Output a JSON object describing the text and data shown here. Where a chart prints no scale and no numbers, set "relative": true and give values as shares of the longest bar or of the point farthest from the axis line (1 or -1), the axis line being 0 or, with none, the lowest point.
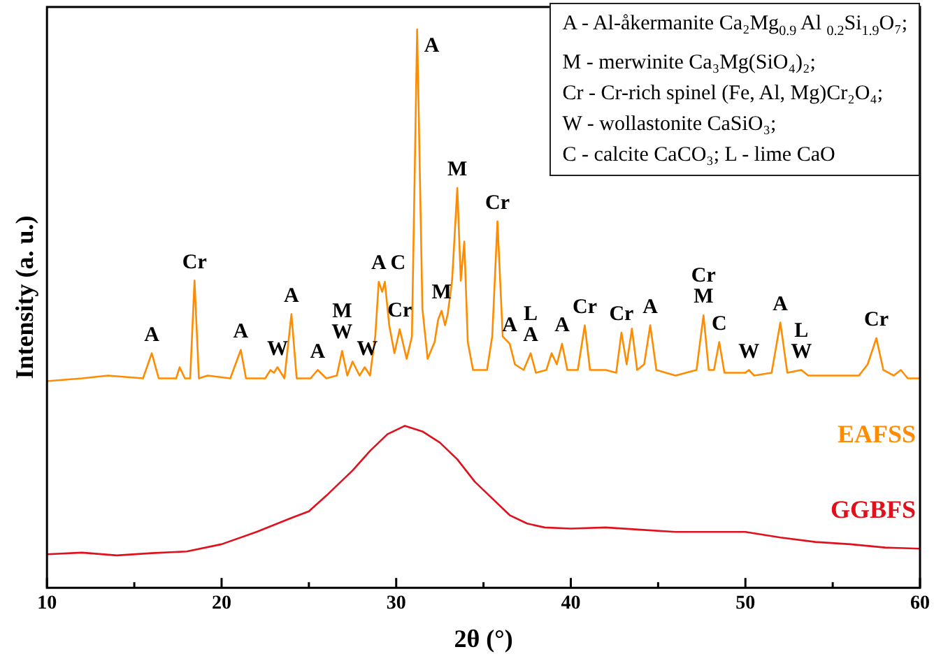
{
  "chart_data": {
    "type": "line",
    "xlabel": "2θ (°)",
    "ylabel": "Intensity (a. u.)",
    "relative": true,
    "xlim": [
      10,
      60
    ],
    "xticks": [
      10,
      {
        "value": 15,
        "label": null
      },
      20,
      {
        "value": 25,
        "label": null
      },
      30,
      {
        "value": 35,
        "label": null
      },
      40,
      {
        "value": 45,
        "label": null
      },
      50,
      {
        "value": 55,
        "label": null
      },
      60
    ],
    "grid": false,
    "legend": false,
    "marker": "none",
    "line_style": "solid",
    "series": [
      {
        "name": "EAFSS",
        "color": "#ff8c00",
        "x": [
          10,
          12,
          13.5,
          15.5,
          16.0,
          16.4,
          17.4,
          17.6,
          17.9,
          18.2,
          18.45,
          18.7,
          19.2,
          20.5,
          21.1,
          21.4,
          22.5,
          22.8,
          23.0,
          23.2,
          23.6,
          24.0,
          24.3,
          25.1,
          25.5,
          26.0,
          26.6,
          26.9,
          27.2,
          27.5,
          27.9,
          28.2,
          28.5,
          28.8,
          29.0,
          29.2,
          29.35,
          29.6,
          29.9,
          30.2,
          30.6,
          30.9,
          31.2,
          31.5,
          31.8,
          32.2,
          32.4,
          32.6,
          32.8,
          32.95,
          33.2,
          33.5,
          33.7,
          33.9,
          34.1,
          34.4,
          35.2,
          35.5,
          35.8,
          36.1,
          36.5,
          36.8,
          37.3,
          37.7,
          38.0,
          38.6,
          38.9,
          39.2,
          39.5,
          39.8,
          40.4,
          40.8,
          41.1,
          42.0,
          42.6,
          42.9,
          43.2,
          43.5,
          43.8,
          44.2,
          44.55,
          44.9,
          46.0,
          47.2,
          47.6,
          47.9,
          48.2,
          48.5,
          48.8,
          50.0,
          50.2,
          50.5,
          51.5,
          52.0,
          52.4,
          53.2,
          53.6,
          55.0,
          56.5,
          57.0,
          57.5,
          57.9,
          58.5,
          58.9,
          59.3,
          60
        ],
        "values": [
          0.37,
          0.375,
          0.38,
          0.375,
          0.42,
          0.375,
          0.375,
          0.395,
          0.375,
          0.375,
          0.55,
          0.375,
          0.38,
          0.375,
          0.426,
          0.375,
          0.375,
          0.39,
          0.385,
          0.395,
          0.375,
          0.49,
          0.375,
          0.375,
          0.39,
          0.375,
          0.38,
          0.424,
          0.38,
          0.405,
          0.38,
          0.395,
          0.38,
          0.45,
          0.548,
          0.53,
          0.548,
          0.47,
          0.42,
          0.463,
          0.41,
          0.45,
          1.0,
          0.5,
          0.41,
          0.44,
          0.48,
          0.496,
          0.47,
          0.49,
          0.55,
          0.716,
          0.55,
          0.62,
          0.44,
          0.39,
          0.39,
          0.45,
          0.656,
          0.45,
          0.437,
          0.4,
          0.39,
          0.42,
          0.385,
          0.39,
          0.42,
          0.4,
          0.437,
          0.39,
          0.39,
          0.47,
          0.39,
          0.39,
          0.385,
          0.457,
          0.4,
          0.464,
          0.39,
          0.4,
          0.47,
          0.39,
          0.38,
          0.39,
          0.488,
          0.39,
          0.39,
          0.44,
          0.385,
          0.385,
          0.39,
          0.38,
          0.385,
          0.475,
          0.385,
          0.39,
          0.38,
          0.38,
          0.38,
          0.4,
          0.447,
          0.39,
          0.38,
          0.39,
          0.375,
          0.375
        ]
      },
      {
        "name": "GGBFS",
        "color": "#e0101c",
        "x": [
          10,
          12,
          14,
          16,
          18,
          20,
          22,
          24,
          25,
          26,
          27.5,
          28.5,
          29.5,
          30.5,
          31.5,
          32.5,
          33.5,
          34.5,
          35.5,
          36.5,
          37.5,
          38.5,
          40,
          42,
          44,
          46,
          48,
          50,
          52,
          54,
          56,
          58,
          60
        ],
        "values": [
          0.06,
          0.063,
          0.058,
          0.062,
          0.065,
          0.078,
          0.1,
          0.125,
          0.137,
          0.165,
          0.21,
          0.245,
          0.275,
          0.29,
          0.28,
          0.26,
          0.23,
          0.19,
          0.16,
          0.13,
          0.115,
          0.108,
          0.106,
          0.108,
          0.104,
          0.1,
          0.1,
          0.1,
          0.09,
          0.082,
          0.078,
          0.072,
          0.07
        ]
      }
    ],
    "annotations": [
      "A - Al-åkermanite Ca₂Mg$_{0.9}$ Al $_{0.2}$Si$_{1.9}$O₇;",
      "M - merwinite Ca₃Mg(SiO₄)₂;",
      "Cr - Cr-rich spinel (Fe, Al, Mg)Cr₂O₄;",
      "W - wollastonite CaSiO₃;",
      "C - calcite CaCO₃; L - lime CaO",
      {
        "text": "A",
        "x": 16.0,
        "y": 0.42
      },
      {
        "text": "Cr",
        "x": 18.45,
        "y": 0.55
      },
      {
        "text": "A",
        "x": 21.1,
        "y": 0.426
      },
      {
        "text": "W",
        "x": 23.2,
        "y": 0.395
      },
      {
        "text": "A",
        "x": 24.0,
        "y": 0.49
      },
      {
        "text": "A",
        "x": 25.5,
        "y": 0.39
      },
      {
        "text": "M",
        "x": 26.9,
        "y": 0.424
      },
      {
        "text": "W",
        "x": 26.9,
        "y": 0.424
      },
      {
        "text": "W",
        "x": 28.2,
        "y": 0.395
      },
      {
        "text": "A",
        "x": 29.0,
        "y": 0.548
      },
      {
        "text": "C",
        "x": 29.35,
        "y": 0.548
      },
      {
        "text": "Cr",
        "x": 30.2,
        "y": 0.463
      },
      {
        "text": "A",
        "x": 31.2,
        "y": 1.0
      },
      {
        "text": "M",
        "x": 32.6,
        "y": 0.496
      },
      {
        "text": "M",
        "x": 33.5,
        "y": 0.716
      },
      {
        "text": "Cr",
        "x": 35.8,
        "y": 0.656
      },
      {
        "text": "A",
        "x": 36.5,
        "y": 0.437
      },
      {
        "text": "L",
        "x": 37.7,
        "y": 0.42
      },
      {
        "text": "A",
        "x": 37.7,
        "y": 0.42
      },
      {
        "text": "A",
        "x": 39.5,
        "y": 0.437
      },
      {
        "text": "Cr",
        "x": 40.8,
        "y": 0.47
      },
      {
        "text": "Cr",
        "x": 42.9,
        "y": 0.457
      },
      {
        "text": "A",
        "x": 44.55,
        "y": 0.47
      },
      {
        "text": "Cr",
        "x": 47.6,
        "y": 0.488
      },
      {
        "text": "M",
        "x": 47.6,
        "y": 0.488
      },
      {
        "text": "C",
        "x": 48.5,
        "y": 0.44
      },
      {
        "text": "W",
        "x": 50.2,
        "y": 0.39
      },
      {
        "text": "A",
        "x": 52.0,
        "y": 0.475
      },
      {
        "text": "L",
        "x": 53.2,
        "y": 0.39
      },
      {
        "text": "W",
        "x": 53.2,
        "y": 0.39
      },
      {
        "text": "Cr",
        "x": 57.5,
        "y": 0.447
      }
    ]
  }
}
